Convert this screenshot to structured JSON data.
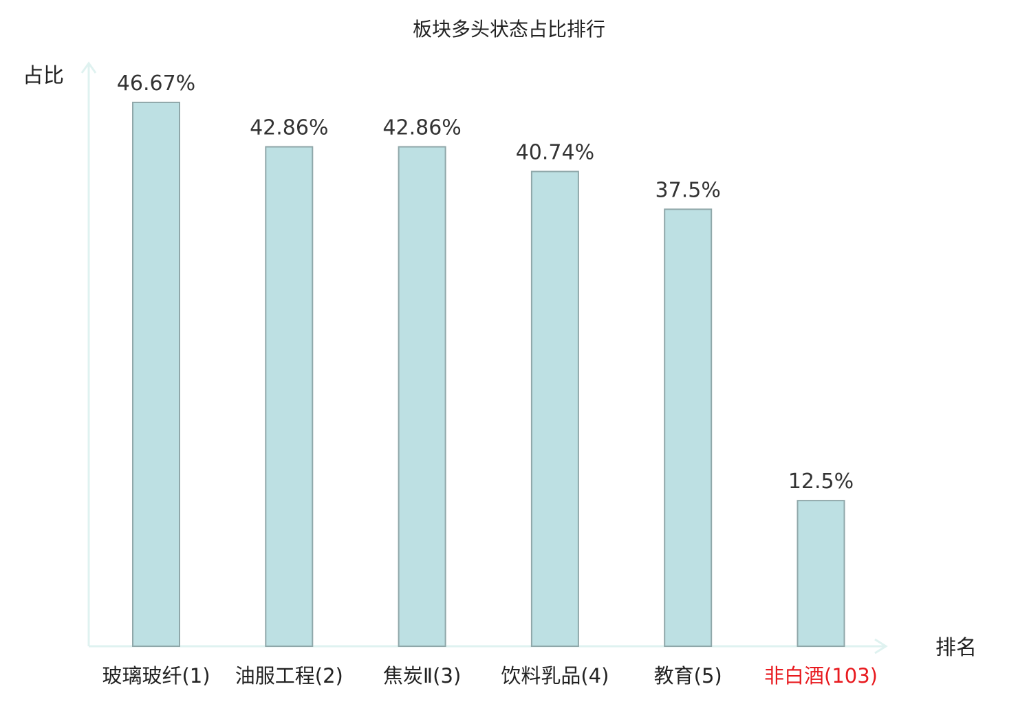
{
  "chart_data": {
    "type": "bar",
    "title": "板块多头状态占比排行",
    "ylabel": "占比",
    "xlabel": "排名",
    "ylim": [
      0,
      50
    ],
    "grid": false,
    "colors": {
      "bar_fill": "#bde0e3",
      "bar_stroke": "#8fa7a9",
      "axis": "#dff2f0",
      "highlight": "#e8191e"
    },
    "categories": [
      "玻璃玻纤(1)",
      "油服工程(2)",
      "焦炭Ⅱ(3)",
      "饮料乳品(4)",
      "教育(5)",
      "非白酒(103)"
    ],
    "values": [
      46.67,
      42.86,
      42.86,
      40.74,
      37.5,
      12.5
    ],
    "value_labels": [
      "46.67%",
      "42.86%",
      "42.86%",
      "40.74%",
      "37.5%",
      "12.5%"
    ],
    "highlight": [
      false,
      false,
      false,
      false,
      false,
      true
    ]
  }
}
